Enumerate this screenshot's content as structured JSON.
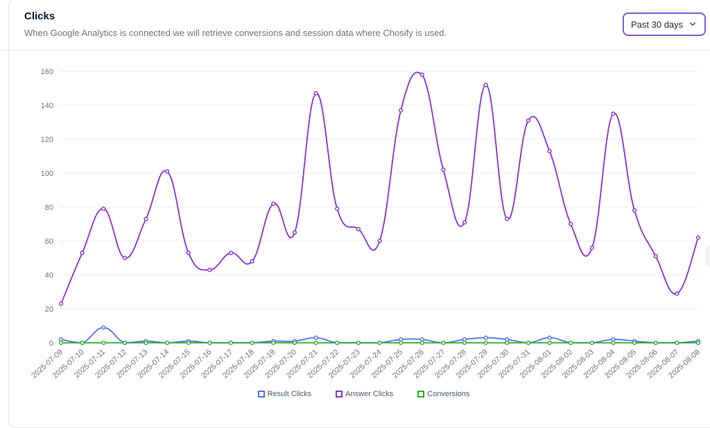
{
  "header": {
    "title": "Clicks",
    "subtitle": "When Google Analytics is connected we will retrieve conversions and session data where Chosify is used."
  },
  "range": {
    "selected": "Past 30 days"
  },
  "colors": {
    "result_clicks": "#4f6fe6",
    "answer_clicks": "#8b2fd6",
    "conversions": "#2fae2f",
    "grid": "#ececef",
    "accent_border": "#7c5cd6"
  },
  "chart_data": {
    "type": "line",
    "categories": [
      "2025-07-09",
      "2025-07-10",
      "2025-07-11",
      "2025-07-12",
      "2025-07-13",
      "2025-07-14",
      "2025-07-15",
      "2025-07-16",
      "2025-07-17",
      "2025-07-18",
      "2025-07-19",
      "2025-07-20",
      "2025-07-21",
      "2025-07-22",
      "2025-07-23",
      "2025-07-24",
      "2025-07-25",
      "2025-07-26",
      "2025-07-27",
      "2025-07-28",
      "2025-07-29",
      "2025-07-30",
      "2025-07-31",
      "2025-08-01",
      "2025-08-02",
      "2025-08-03",
      "2025-08-04",
      "2025-08-05",
      "2025-08-06",
      "2025-08-07",
      "2025-08-08"
    ],
    "series": [
      {
        "name": "Result Clicks",
        "color": "#4f6fe6",
        "values": [
          2,
          0,
          9,
          0,
          1,
          0,
          1,
          0,
          0,
          0,
          1,
          1,
          3,
          0,
          0,
          0,
          2,
          2,
          0,
          2,
          3,
          2,
          0,
          3,
          0,
          0,
          2,
          1,
          0,
          0,
          1
        ]
      },
      {
        "name": "Answer Clicks",
        "color": "#8b2fd6",
        "values": [
          23,
          53,
          79,
          50,
          73,
          101,
          53,
          43,
          53,
          48,
          82,
          65,
          147,
          79,
          67,
          60,
          137,
          158,
          102,
          71,
          152,
          73,
          131,
          113,
          70,
          56,
          135,
          78,
          51,
          29,
          62
        ]
      },
      {
        "name": "Conversions",
        "color": "#2fae2f",
        "values": [
          0,
          0,
          0,
          0,
          0,
          0,
          0,
          0,
          0,
          0,
          0,
          0,
          0,
          0,
          0,
          0,
          0,
          0,
          0,
          0,
          0,
          0,
          0,
          0,
          0,
          0,
          0,
          0,
          0,
          0,
          0
        ]
      }
    ],
    "ylim": [
      0,
      160
    ],
    "yticks": [
      0,
      20,
      40,
      60,
      80,
      100,
      120,
      140,
      160
    ],
    "grid": true,
    "legend_position": "bottom-center"
  }
}
